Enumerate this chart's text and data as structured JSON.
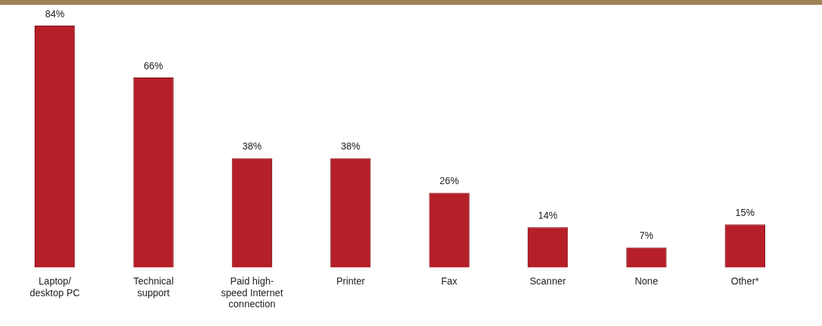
{
  "chart_data": {
    "type": "bar",
    "categories": [
      "Laptop/desktop PC",
      "Technical support",
      "Paid high-speed Internet connection",
      "Printer",
      "Fax",
      "Scanner",
      "None",
      "Other*"
    ],
    "values": [
      84,
      66,
      38,
      38,
      26,
      14,
      7,
      15
    ],
    "value_labels": [
      "84%",
      "66%",
      "38%",
      "38%",
      "26%",
      "14%",
      "7%",
      "15%"
    ],
    "color": "#b51f28",
    "grid": false,
    "legend": false
  }
}
